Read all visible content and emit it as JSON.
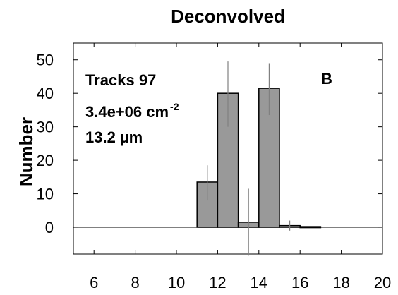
{
  "chart_data": {
    "type": "bar",
    "title": "Deconvolved",
    "xlabel": "",
    "ylabel": "Number",
    "xlim": [
      5,
      20
    ],
    "ylim": [
      -8,
      55
    ],
    "xticks": [
      6,
      8,
      10,
      12,
      14,
      16,
      18,
      20
    ],
    "yticks": [
      0,
      10,
      20,
      30,
      40,
      50
    ],
    "bar_color": "#999999",
    "bars": [
      {
        "x0": 11.0,
        "x1": 12.0,
        "y": 13.5,
        "err_lo": 8.0,
        "err_hi": 18.5
      },
      {
        "x0": 12.0,
        "x1": 13.0,
        "y": 40.0,
        "err_lo": 30.0,
        "err_hi": 49.5
      },
      {
        "x0": 13.0,
        "x1": 14.0,
        "y": 1.5,
        "err_lo": -8.5,
        "err_hi": 11.5
      },
      {
        "x0": 14.0,
        "x1": 15.0,
        "y": 41.5,
        "err_lo": 33.5,
        "err_hi": 49.0
      },
      {
        "x0": 15.0,
        "x1": 16.0,
        "y": 0.5,
        "err_lo": -1.0,
        "err_hi": 2.0
      },
      {
        "x0": 16.0,
        "x1": 17.0,
        "y": 0.2,
        "err_lo": 0.2,
        "err_hi": 0.2
      }
    ],
    "annotations": {
      "tracks": "Tracks 97",
      "density_base": "3.4e+06 cm",
      "density_exp": "-2",
      "length": "13.2 µm",
      "panel": "B"
    }
  }
}
